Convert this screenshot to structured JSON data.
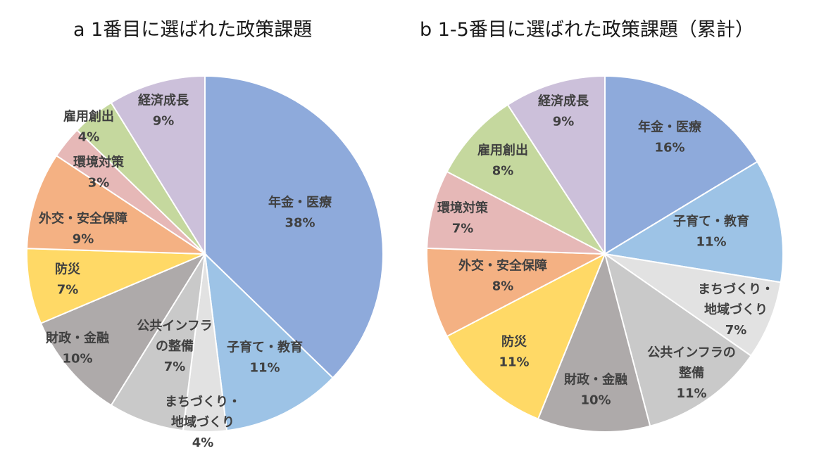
{
  "chart_data": [
    {
      "type": "pie",
      "title": "a 1番目に選ばれた政策課題",
      "slices": [
        {
          "label": "年金・医療",
          "value": 38,
          "display": "38%",
          "color": "#8eaadb"
        },
        {
          "label": "子育て・教育",
          "value": 11,
          "display": "11%",
          "color": "#9dc3e6"
        },
        {
          "label": "まちづくり・地域づくり",
          "value": 4,
          "display": "4%",
          "color": "#e2e2e2"
        },
        {
          "label": "公共インフラの整備",
          "value": 7,
          "display": "7%",
          "color": "#c9c9c9"
        },
        {
          "label": "財政・金融",
          "value": 10,
          "display": "10%",
          "color": "#aeaaaa"
        },
        {
          "label": "防災",
          "value": 7,
          "display": "7%",
          "color": "#ffd966"
        },
        {
          "label": "外交・安全保障",
          "value": 9,
          "display": "9%",
          "color": "#f4b183"
        },
        {
          "label": "環境対策",
          "value": 3,
          "display": "3%",
          "color": "#e6b8b7"
        },
        {
          "label": "雇用創出",
          "value": 4,
          "display": "4%",
          "color": "#c5d89e"
        },
        {
          "label": "経済成長",
          "value": 9,
          "display": "9%",
          "color": "#ccc0da"
        }
      ]
    },
    {
      "type": "pie",
      "title": "b 1-5番目に選ばれた政策課題（累計）",
      "slices": [
        {
          "label": "年金・医療",
          "value": 16,
          "display": "16%",
          "color": "#8eaadb"
        },
        {
          "label": "子育て・教育",
          "value": 11,
          "display": "11%",
          "color": "#9dc3e6"
        },
        {
          "label": "まちづくり・地域づくり",
          "value": 7,
          "display": "7%",
          "color": "#e2e2e2"
        },
        {
          "label": "公共インフラの整備",
          "value": 11,
          "display": "11%",
          "color": "#c9c9c9"
        },
        {
          "label": "財政・金融",
          "value": 10,
          "display": "10%",
          "color": "#aeaaaa"
        },
        {
          "label": "防災",
          "value": 11,
          "display": "11%",
          "color": "#ffd966"
        },
        {
          "label": "外交・安全保障",
          "value": 8,
          "display": "8%",
          "color": "#f4b183"
        },
        {
          "label": "環境対策",
          "value": 7,
          "display": "7%",
          "color": "#e6b8b7"
        },
        {
          "label": "雇用創出",
          "value": 8,
          "display": "8%",
          "color": "#c5d89e"
        },
        {
          "label": "経済成長",
          "value": 9,
          "display": "9%",
          "color": "#ccc0da"
        }
      ]
    }
  ]
}
